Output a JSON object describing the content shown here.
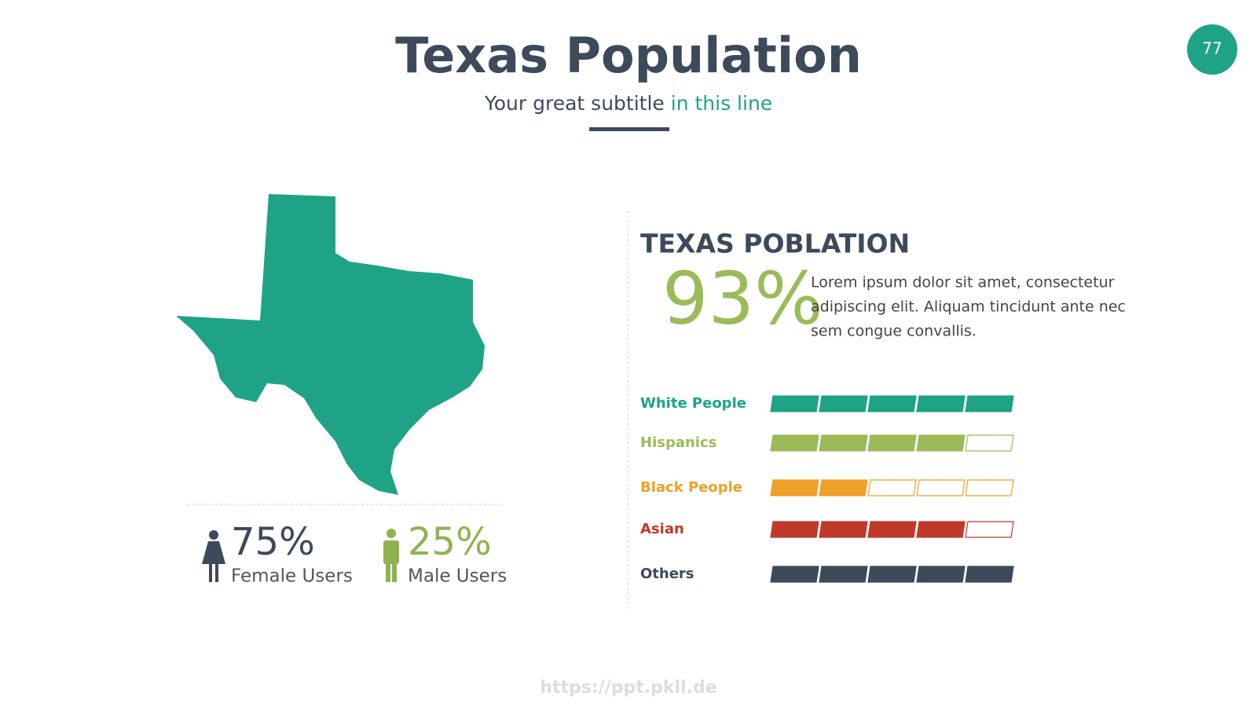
{
  "header": {
    "title": "Texas Population",
    "subtitle": "Your great subtitle",
    "subtitle_accent": "in this line",
    "page_number": "77"
  },
  "left_panel": {
    "stats": [
      {
        "value": "75%",
        "label": "Female Users",
        "color": "#3d4a5c"
      },
      {
        "value": "25%",
        "label": "Male Users",
        "color": "#8fb34f"
      }
    ]
  },
  "right_panel": {
    "heading": "TEXAS POBLATION",
    "big_value": "93%",
    "body": [
      "Lorem ipsum dolor sit amet, consectetur",
      "adipiscing elit. Aliquam tincidunt ante nec",
      "sem congue convallis."
    ],
    "segments": 5,
    "rows": [
      {
        "label": "White People",
        "filled": 5,
        "color": "#1fa386"
      },
      {
        "label": "Hispanics",
        "filled": 4,
        "color": "#9bbb59"
      },
      {
        "label": "Black People",
        "filled": 2,
        "color": "#f0a028"
      },
      {
        "label": "Asian",
        "filled": 4,
        "color": "#c0392b"
      },
      {
        "label": "Others",
        "filled": 5,
        "color": "#3d4a5c"
      }
    ]
  },
  "footer": {
    "watermark": "https://ppt.pkll.de"
  }
}
